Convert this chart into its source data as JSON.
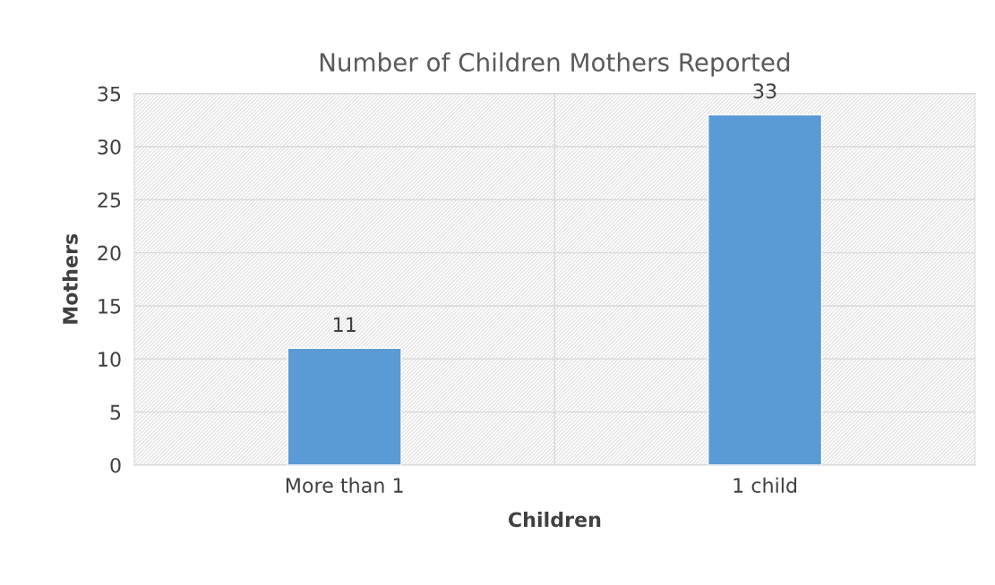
{
  "chart_data": {
    "type": "bar",
    "title": "Number of Children Mothers Reported",
    "xlabel": "Children",
    "ylabel": "Mothers",
    "categories": [
      "More than 1",
      "1 child"
    ],
    "series": [
      {
        "color": "#5b9bd5",
        "values": [
          11,
          33
        ]
      }
    ],
    "ylim": [
      0,
      35
    ],
    "yticks": [
      0,
      5,
      10,
      15,
      20,
      25,
      30,
      35
    ],
    "grid": "y",
    "data_labels": true
  }
}
